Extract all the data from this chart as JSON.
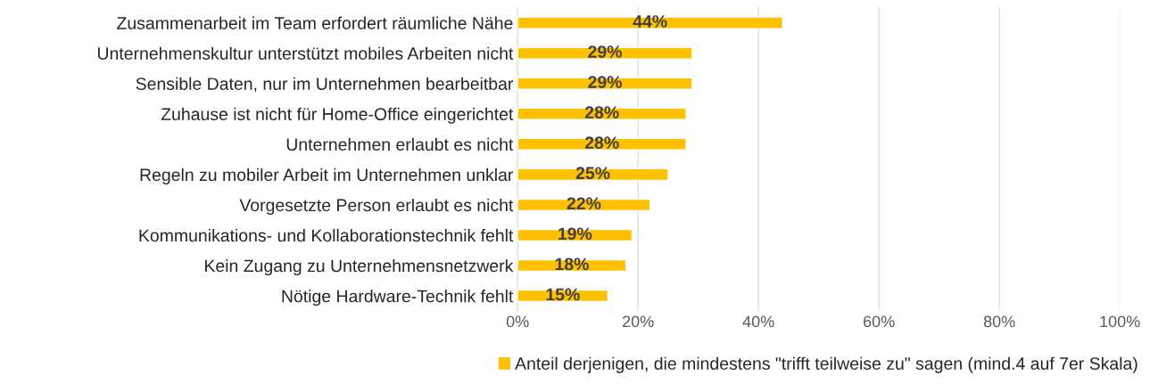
{
  "chart_data": {
    "type": "bar",
    "orientation": "horizontal",
    "categories": [
      "Zusammenarbeit im Team erfordert räumliche Nähe",
      "Unternehmenskultur unterstützt mobiles Arbeiten nicht",
      "Sensible Daten, nur im Unternehmen bearbeitbar",
      "Zuhause ist nicht für Home-Office eingerichtet",
      "Unternehmen erlaubt es nicht",
      "Regeln zu mobiler Arbeit im Unternehmen unklar",
      "Vorgesetzte Person erlaubt es nicht",
      "Kommunikations- und Kollaborationstechnik fehlt",
      "Kein Zugang zu Unternehmensnetzwerk",
      "Nötige Hardware-Technik fehlt"
    ],
    "series": [
      {
        "name": "Anteil derjenigen, die mindestens \"trifft teilweise zu\" sagen (mind.4 auf 7er Skala)",
        "color": "#ffc000",
        "values": [
          44,
          29,
          29,
          28,
          28,
          25,
          22,
          19,
          18,
          15
        ],
        "value_labels": [
          "44%",
          "29%",
          "29%",
          "28%",
          "28%",
          "25%",
          "22%",
          "19%",
          "18%",
          "15%"
        ]
      }
    ],
    "xlim": [
      0,
      100
    ],
    "xticks": [
      {
        "value": 0,
        "label": "0%"
      },
      {
        "value": 20,
        "label": "20%"
      },
      {
        "value": 40,
        "label": "40%"
      },
      {
        "value": 60,
        "label": "60%"
      },
      {
        "value": 80,
        "label": "80%"
      },
      {
        "value": 100,
        "label": "100%"
      }
    ],
    "grid": "x",
    "legend": "bottom"
  }
}
